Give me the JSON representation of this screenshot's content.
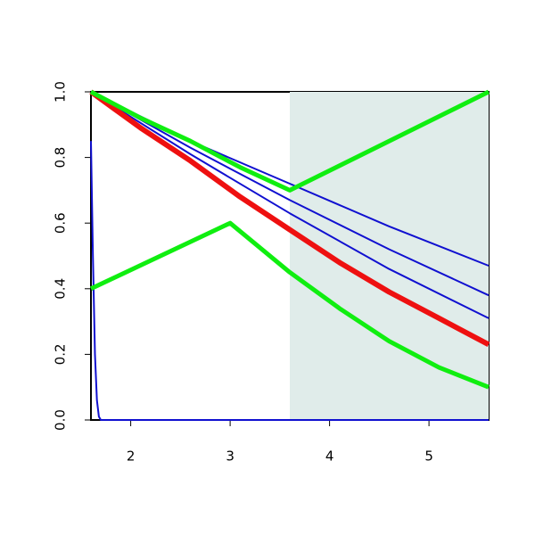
{
  "chart_data": {
    "type": "line",
    "xlim": [
      1.6,
      5.6
    ],
    "ylim": [
      0,
      1
    ],
    "xticks": [
      2,
      3,
      4,
      5
    ],
    "yticks": [
      {
        "value": 0,
        "label": "0.0"
      },
      0.2,
      0.4,
      0.6,
      0.8,
      {
        "value": 1,
        "label": "1.0"
      }
    ],
    "shade": {
      "from": 3.6,
      "to": 5.6,
      "color": "#e0ecea"
    },
    "series": [
      {
        "color": "#1010d0",
        "lwd": 2,
        "x": [
          1.6,
          1.62,
          1.64,
          1.66,
          1.68,
          1.7,
          5.6
        ],
        "values": [
          0.85,
          0.5,
          0.2,
          0.06,
          0.01,
          0,
          0
        ]
      },
      {
        "color": "#1010d0",
        "lwd": 2,
        "x": [
          1.6,
          2.6,
          3.6,
          4.6,
          5.6
        ],
        "values": [
          1,
          0.85,
          0.72,
          0.59,
          0.47
        ]
      },
      {
        "color": "#1010d0",
        "lwd": 2,
        "x": [
          1.6,
          2.6,
          3.6,
          4.6,
          5.6
        ],
        "values": [
          1,
          0.83,
          0.67,
          0.52,
          0.38
        ]
      },
      {
        "color": "#1010d0",
        "lwd": 2,
        "x": [
          1.6,
          2.6,
          3.6,
          4.6,
          5.6
        ],
        "values": [
          1,
          0.81,
          0.63,
          0.46,
          0.31
        ]
      },
      {
        "color": "#ee1010",
        "lwd": 6,
        "x": [
          1.6,
          2.1,
          2.6,
          3.1,
          3.6,
          4.1,
          4.6,
          5.1,
          5.6
        ],
        "values": [
          1,
          0.89,
          0.79,
          0.68,
          0.58,
          0.48,
          0.39,
          0.31,
          0.23
        ]
      },
      {
        "color": "#10ee10",
        "lwd": 5,
        "x": [
          1.6,
          2.1,
          2.6,
          3.1,
          3.6,
          5.6
        ],
        "values": [
          1,
          0.92,
          0.85,
          0.77,
          0.7,
          1
        ]
      },
      {
        "color": "#10ee10",
        "lwd": 5,
        "x": [
          1.6,
          3.0,
          3.6,
          4.1,
          4.6,
          5.1,
          5.6
        ],
        "values": [
          0.4,
          0.6,
          0.45,
          0.34,
          0.24,
          0.16,
          0.1
        ]
      }
    ]
  }
}
